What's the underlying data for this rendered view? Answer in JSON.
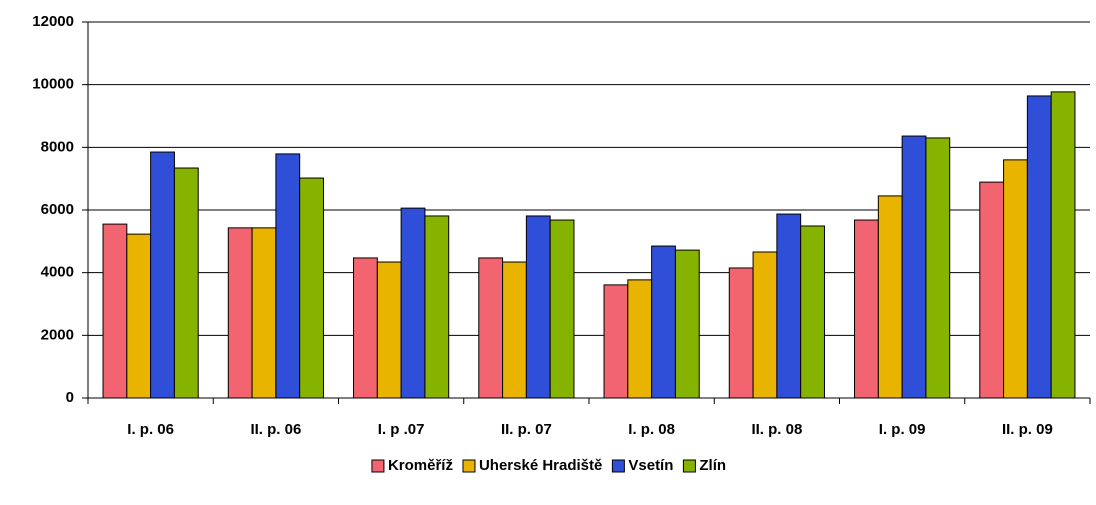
{
  "chart_data": {
    "type": "bar",
    "categories": [
      "I. p. 06",
      "II. p. 06",
      "I. p .07",
      "II. p. 07",
      "I. p. 08",
      "II. p. 08",
      "I. p. 09",
      "II. p. 09"
    ],
    "series": [
      {
        "name": "Kroměříž",
        "color": "#f26470",
        "values": [
          5550,
          5430,
          4470,
          4470,
          3610,
          4150,
          5680,
          6890
        ]
      },
      {
        "name": "Uherské Hradiště",
        "color": "#e8b400",
        "values": [
          5230,
          5430,
          4340,
          4340,
          3770,
          4660,
          6450,
          7600
        ]
      },
      {
        "name": "Vsetín",
        "color": "#2f4fd8",
        "values": [
          7850,
          7790,
          6060,
          5810,
          4850,
          5870,
          8360,
          9640
        ]
      },
      {
        "name": "Zlín",
        "color": "#86b300",
        "values": [
          7340,
          7020,
          5810,
          5680,
          4720,
          5490,
          8300,
          9770
        ]
      }
    ],
    "ylim": [
      0,
      12000
    ],
    "yticks": [
      0,
      2000,
      4000,
      6000,
      8000,
      10000,
      12000
    ],
    "grid": true,
    "legend": "bottom"
  }
}
